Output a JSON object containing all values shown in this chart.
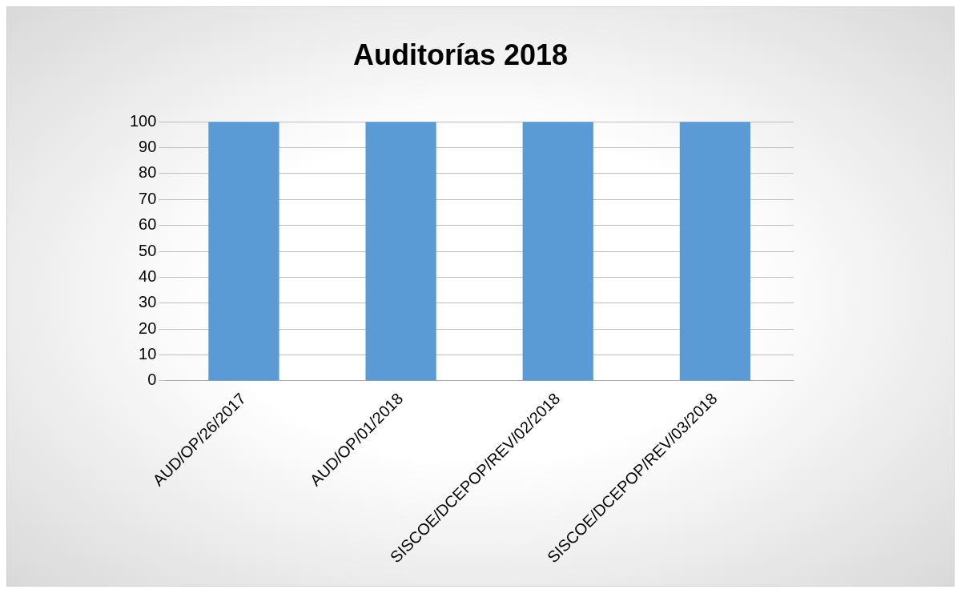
{
  "chart_data": {
    "type": "bar",
    "title": "Auditorías 2018",
    "categories": [
      "AUD/OP/26/2017",
      "AUD/OP/01/2018",
      "SISCOE/DCEPOP/REV/02/2018",
      "SISCOE/DCEPOP/REV/03/2018"
    ],
    "values": [
      100,
      100,
      100,
      100
    ],
    "color": "#5b9bd5",
    "ylim": [
      0,
      100
    ],
    "yticks": [
      0,
      10,
      20,
      30,
      40,
      50,
      60,
      70,
      80,
      90,
      100
    ],
    "grid": "y"
  }
}
